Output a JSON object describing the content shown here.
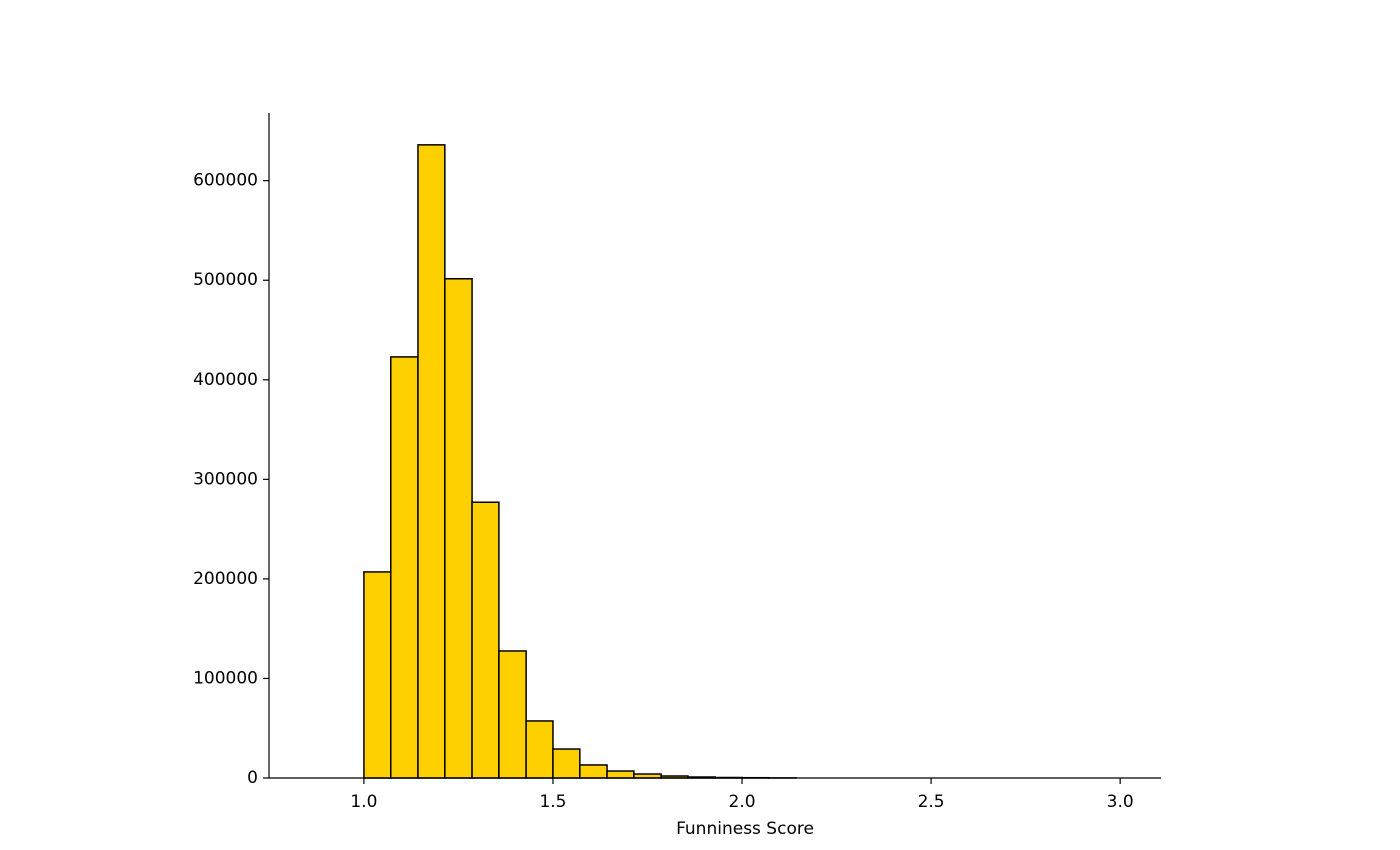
{
  "chart_data": {
    "type": "histogram",
    "x_label": "Funniness Score",
    "bins": [
      0.857,
      0.929,
      1.0,
      1.071,
      1.143,
      1.214,
      1.286,
      1.357,
      1.429,
      1.5,
      1.571,
      1.643,
      1.714,
      1.786,
      1.857,
      1.929,
      2.0,
      2.071,
      2.143,
      2.214,
      2.286,
      2.357,
      2.429,
      2.5,
      2.571,
      2.643,
      2.714,
      2.786,
      2.857,
      2.929,
      3.0
    ],
    "counts": [
      0,
      0,
      207000,
      423000,
      636000,
      501500,
      277000,
      127600,
      57300,
      29100,
      13100,
      7000,
      4000,
      2000,
      1000,
      500,
      300,
      100,
      0,
      0,
      0,
      0,
      0,
      0,
      0,
      0,
      0,
      0,
      0,
      0
    ],
    "color": "#ffd000",
    "edge_color": "#000000",
    "xlim": [
      0.749,
      3.108
    ],
    "ylim": [
      0,
      668000
    ],
    "xticks": [
      {
        "value": 1,
        "label": "1.0"
      },
      {
        "value": 1.5,
        "label": "1.5"
      },
      {
        "value": 2,
        "label": "2.0"
      },
      {
        "value": 2.5,
        "label": "2.5"
      },
      {
        "value": 3,
        "label": "3.0"
      }
    ],
    "yticks": [
      0,
      100000,
      200000,
      300000,
      400000,
      500000,
      600000
    ],
    "grid": false
  }
}
